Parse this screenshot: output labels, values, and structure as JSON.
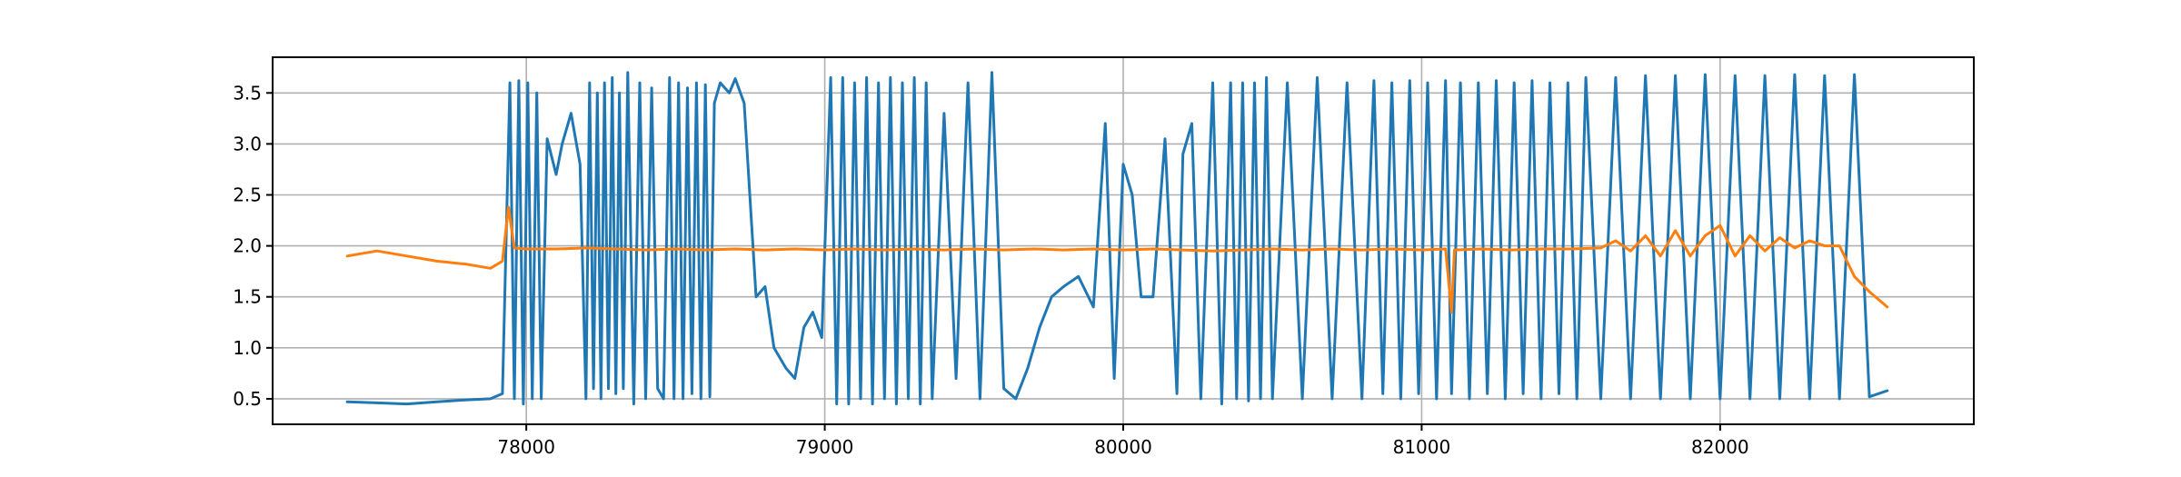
{
  "chart_data": {
    "type": "line",
    "title": "",
    "xlabel": "",
    "ylabel": "",
    "xlim": [
      77150,
      82850
    ],
    "ylim": [
      0.25,
      3.85
    ],
    "grid": true,
    "legend": "none",
    "x_ticks": [
      78000,
      79000,
      80000,
      81000,
      82000
    ],
    "x_tick_labels": [
      "78000",
      "79000",
      "80000",
      "81000",
      "82000"
    ],
    "y_ticks": [
      0.5,
      1.0,
      1.5,
      2.0,
      2.5,
      3.0,
      3.5
    ],
    "y_tick_labels": [
      "0.5",
      "1.0",
      "1.5",
      "2.0",
      "2.5",
      "3.0",
      "3.5"
    ],
    "series": [
      {
        "color": "#1f77b4",
        "x": [
          77400,
          77500,
          77600,
          77700,
          77800,
          77880,
          77920,
          77945,
          77960,
          77975,
          77990,
          78005,
          78020,
          78035,
          78050,
          78070,
          78100,
          78120,
          78150,
          78180,
          78200,
          78212,
          78225,
          78238,
          78250,
          78262,
          78275,
          78288,
          78300,
          78312,
          78325,
          78340,
          78360,
          78380,
          78400,
          78420,
          78440,
          78460,
          78480,
          78495,
          78510,
          78525,
          78540,
          78555,
          78570,
          78585,
          78600,
          78615,
          78630,
          78650,
          78680,
          78700,
          78730,
          78770,
          78800,
          78830,
          78870,
          78900,
          78930,
          78960,
          78990,
          79020,
          79040,
          79060,
          79080,
          79100,
          79120,
          79140,
          79160,
          79180,
          79200,
          79220,
          79240,
          79260,
          79280,
          79300,
          79320,
          79340,
          79360,
          79400,
          79440,
          79480,
          79520,
          79560,
          79600,
          79640,
          79680,
          79720,
          79760,
          79800,
          79850,
          79900,
          79940,
          79970,
          80000,
          80030,
          80060,
          80100,
          80140,
          80180,
          80200,
          80230,
          80260,
          80300,
          80330,
          80360,
          80380,
          80400,
          80420,
          80440,
          80460,
          80480,
          80500,
          80550,
          80600,
          80650,
          80700,
          80750,
          80800,
          80840,
          80870,
          80900,
          80930,
          80960,
          80990,
          81020,
          81050,
          81080,
          81100,
          81130,
          81160,
          81190,
          81220,
          81250,
          81280,
          81310,
          81340,
          81370,
          81400,
          81430,
          81460,
          81490,
          81520,
          81550,
          81600,
          81650,
          81700,
          81750,
          81800,
          81850,
          81900,
          81950,
          82000,
          82050,
          82100,
          82150,
          82200,
          82250,
          82300,
          82350,
          82400,
          82450,
          82500,
          82560
        ],
        "y": [
          0.47,
          0.46,
          0.45,
          0.47,
          0.49,
          0.5,
          0.55,
          3.6,
          0.5,
          3.62,
          0.45,
          3.6,
          0.5,
          3.5,
          0.5,
          3.05,
          2.7,
          3.0,
          3.3,
          2.8,
          0.5,
          3.6,
          0.6,
          3.5,
          0.5,
          3.6,
          0.6,
          3.65,
          0.55,
          3.5,
          0.6,
          3.7,
          0.45,
          3.6,
          0.5,
          3.55,
          0.6,
          0.5,
          3.65,
          0.5,
          3.6,
          0.5,
          3.55,
          0.55,
          3.6,
          0.5,
          3.58,
          0.52,
          3.4,
          3.6,
          3.5,
          3.64,
          3.4,
          1.5,
          1.6,
          1.0,
          0.8,
          0.7,
          1.2,
          1.35,
          1.1,
          3.65,
          0.45,
          3.65,
          0.45,
          3.6,
          0.5,
          3.65,
          0.45,
          3.6,
          0.5,
          3.65,
          0.45,
          3.6,
          0.5,
          3.65,
          0.45,
          3.6,
          0.5,
          3.3,
          0.7,
          3.6,
          0.5,
          3.7,
          0.6,
          0.5,
          0.8,
          1.2,
          1.5,
          1.6,
          1.7,
          1.4,
          3.2,
          0.7,
          2.8,
          2.5,
          1.5,
          1.5,
          3.05,
          0.55,
          2.9,
          3.2,
          0.5,
          3.6,
          0.45,
          3.6,
          0.5,
          3.6,
          0.48,
          3.6,
          0.5,
          3.65,
          0.5,
          3.6,
          0.5,
          3.65,
          0.5,
          3.6,
          0.5,
          3.62,
          0.55,
          3.6,
          0.5,
          3.62,
          0.55,
          3.6,
          0.5,
          3.62,
          0.55,
          3.6,
          0.5,
          3.6,
          0.55,
          3.62,
          0.5,
          3.6,
          0.55,
          3.62,
          0.5,
          3.6,
          0.55,
          3.6,
          0.5,
          3.65,
          0.5,
          3.65,
          0.5,
          3.67,
          0.5,
          3.67,
          0.5,
          3.68,
          0.5,
          3.67,
          0.5,
          3.67,
          0.5,
          3.68,
          0.5,
          3.67,
          0.5,
          3.68,
          0.52,
          0.58
        ]
      },
      {
        "color": "#ff7f0e",
        "x": [
          77400,
          77500,
          77600,
          77700,
          77800,
          77880,
          77920,
          77940,
          77960,
          78000,
          78100,
          78200,
          78300,
          78400,
          78500,
          78600,
          78700,
          78800,
          78900,
          79000,
          79100,
          79200,
          79300,
          79400,
          79500,
          79600,
          79700,
          79800,
          79900,
          80000,
          80100,
          80200,
          80300,
          80400,
          80500,
          80600,
          80700,
          80800,
          80900,
          81000,
          81080,
          81100,
          81110,
          81200,
          81300,
          81400,
          81500,
          81600,
          81650,
          81700,
          81750,
          81800,
          81850,
          81900,
          81950,
          82000,
          82050,
          82100,
          82150,
          82200,
          82250,
          82300,
          82350,
          82400,
          82450,
          82500,
          82560
        ],
        "y": [
          1.9,
          1.95,
          1.9,
          1.85,
          1.82,
          1.78,
          1.85,
          2.38,
          1.98,
          1.97,
          1.97,
          1.98,
          1.97,
          1.96,
          1.97,
          1.96,
          1.97,
          1.96,
          1.97,
          1.96,
          1.97,
          1.96,
          1.97,
          1.96,
          1.97,
          1.96,
          1.97,
          1.96,
          1.97,
          1.96,
          1.97,
          1.96,
          1.95,
          1.96,
          1.97,
          1.96,
          1.97,
          1.96,
          1.97,
          1.96,
          1.97,
          1.35,
          1.96,
          1.97,
          1.96,
          1.97,
          1.97,
          1.98,
          2.05,
          1.95,
          2.1,
          1.9,
          2.15,
          1.9,
          2.1,
          2.2,
          1.9,
          2.1,
          1.95,
          2.08,
          1.98,
          2.05,
          2.0,
          2.0,
          1.7,
          1.55,
          1.4
        ]
      }
    ]
  }
}
